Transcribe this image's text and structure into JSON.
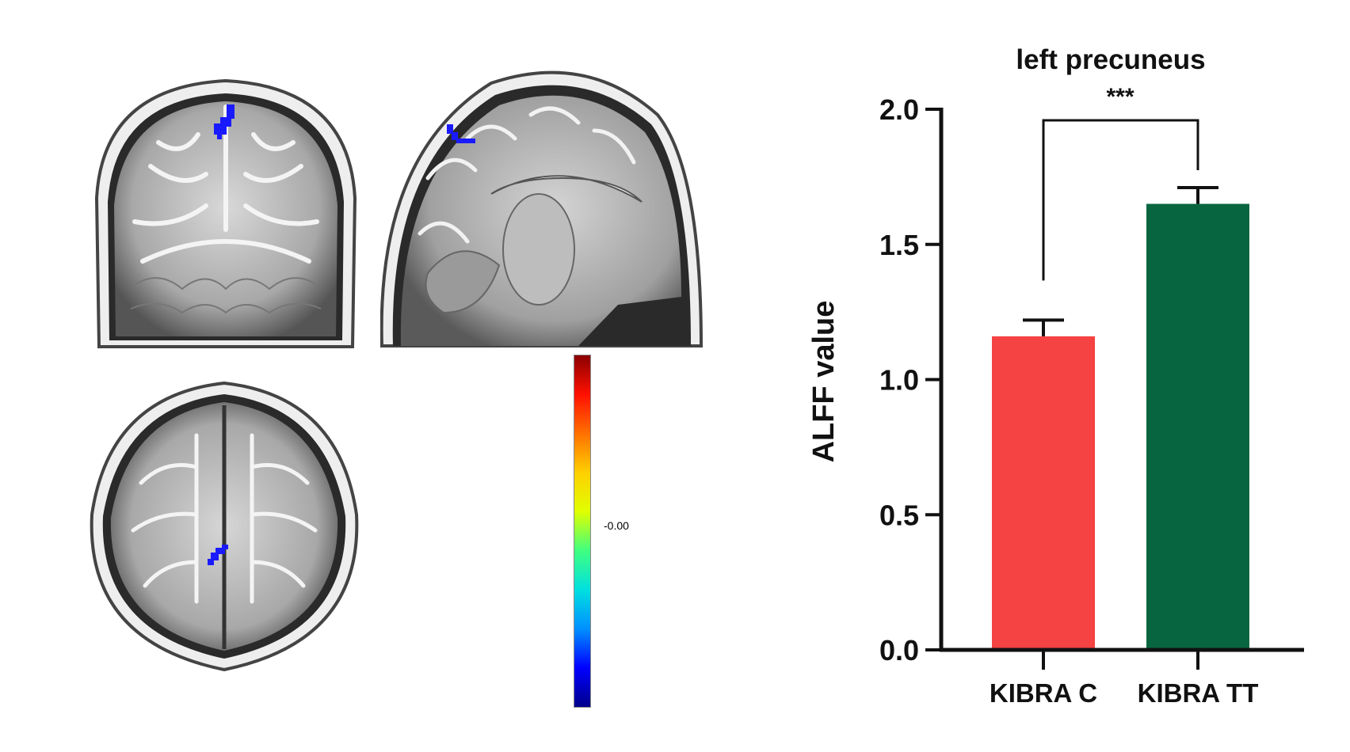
{
  "brain_views": [
    {
      "name": "coronal"
    },
    {
      "name": "sagittal"
    },
    {
      "name": "axial"
    }
  ],
  "colorbar": {
    "label": "-0.00",
    "colors": [
      "#00008b",
      "#0000ff",
      "#0090ff",
      "#00e0e0",
      "#40ff80",
      "#e0ff00",
      "#ffd000",
      "#ff7000",
      "#ff1000",
      "#8b0000"
    ]
  },
  "colors": {
    "bar_c": "#f54242",
    "bar_tt": "#07663f",
    "activation": "#1a1aff"
  },
  "chart_data": {
    "type": "bar",
    "title": "left precuneus",
    "ylabel": "ALFF value",
    "xlabel": "",
    "categories": [
      "KIBRA C",
      "KIBRA TT"
    ],
    "values": [
      1.16,
      1.65
    ],
    "errors": [
      0.06,
      0.06
    ],
    "ylim": [
      0,
      2.0
    ],
    "yticks": [
      0.0,
      0.5,
      1.0,
      1.5,
      2.0
    ],
    "ytick_labels": [
      "0.0",
      "0.5",
      "1.0",
      "1.5",
      "2.0"
    ],
    "significance": {
      "label": "***",
      "between": [
        0,
        1
      ]
    },
    "grid": false
  }
}
